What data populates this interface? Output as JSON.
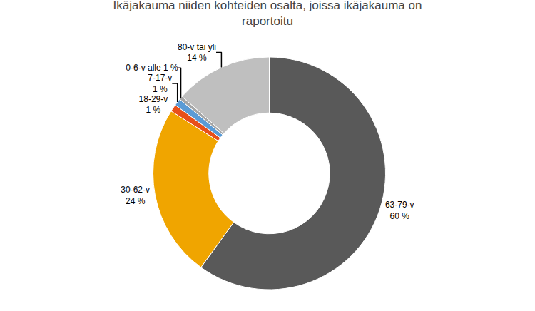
{
  "chart_data": {
    "type": "pie",
    "title": "Ikäjakauma niiden kohteiden osalta, joissa ikäjakauma on\nraportoitu",
    "categories": [
      "63-79-v\n60 %",
      "30-62-v\n24 %",
      "18-29-v\n1 %",
      "7-17-v\n1 %",
      "0-6-v alle 1 %",
      "80-v tai yli\n14 %"
    ],
    "values": [
      60,
      24,
      1,
      1,
      0.5,
      13.5
    ],
    "colors": [
      "#595959",
      "#F0A500",
      "#E8501A",
      "#5B9BD5",
      "#A5A5A5",
      "#BFBFBF"
    ]
  }
}
